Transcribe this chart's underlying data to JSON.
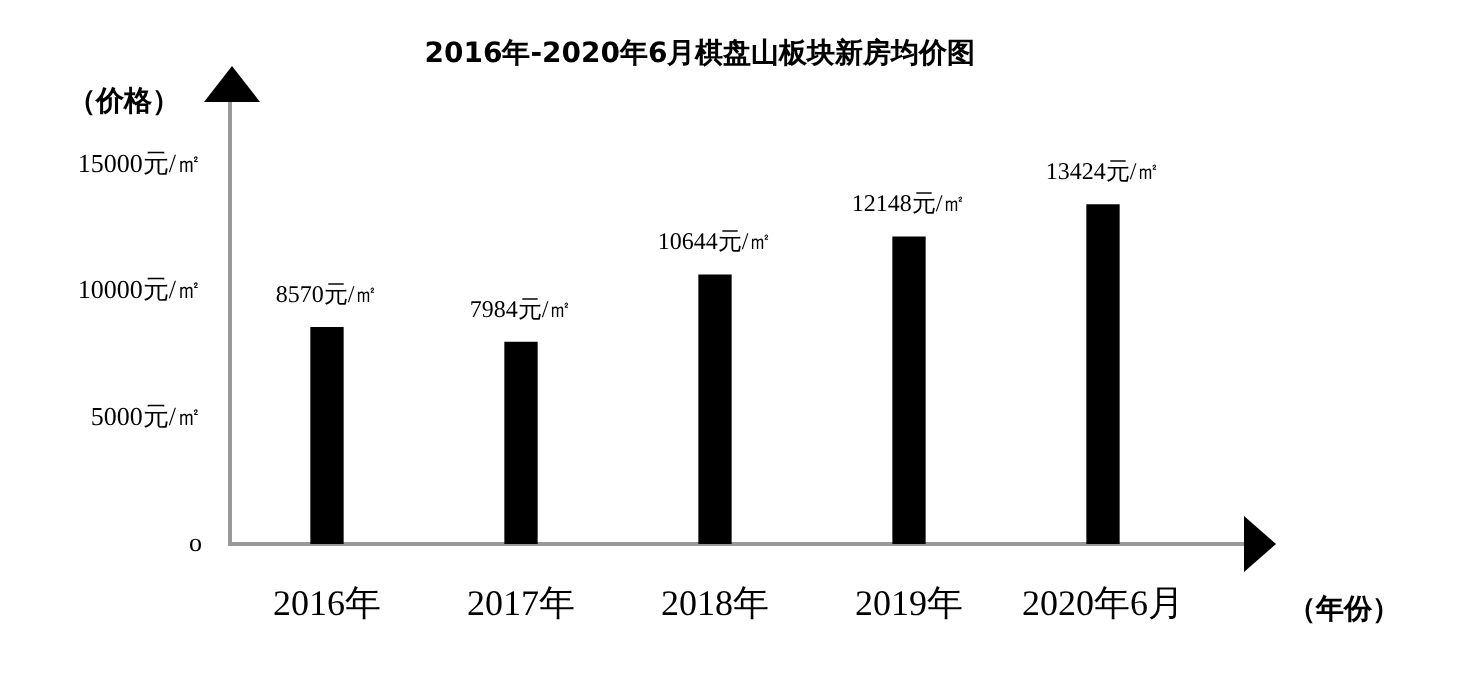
{
  "chart_data": {
    "type": "bar",
    "title": "2016年-2020年6月棋盘山板块新房均价图",
    "xlabel": "（年份）",
    "ylabel": "（价格）",
    "categories": [
      "2016年",
      "2017年",
      "2018年",
      "2019年",
      "2020年6月"
    ],
    "values": [
      8570,
      7984,
      10644,
      12148,
      13424
    ],
    "value_labels": [
      "8570元/㎡",
      "7984元/㎡",
      "10644元/㎡",
      "12148元/㎡",
      "13424元/㎡"
    ],
    "color": "#000000",
    "ylim": [
      0,
      17500
    ],
    "yticks": [
      {
        "value": 0,
        "label": "o"
      },
      {
        "value": 5000,
        "label": "5000元/㎡"
      },
      {
        "value": 10000,
        "label": "10000元/㎡"
      },
      {
        "value": 15000,
        "label": "15000元/㎡"
      }
    ]
  }
}
